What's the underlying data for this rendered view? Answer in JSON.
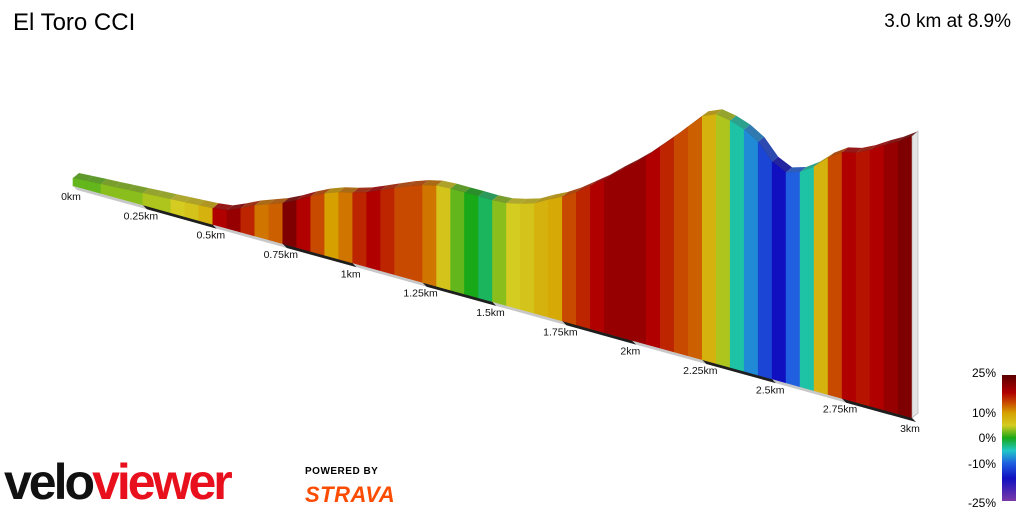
{
  "header": {
    "title": "El Toro CCI",
    "summary": "3.0 km at 8.9%"
  },
  "chart_data": {
    "type": "area",
    "title": "El Toro CCI",
    "xlabel": "",
    "ylabel": "",
    "x_unit": "km",
    "xlim": [
      0,
      3.0
    ],
    "tick_labels": [
      "0km",
      "0.25km",
      "0.5km",
      "0.75km",
      "1km",
      "1.25km",
      "1.5km",
      "1.75km",
      "2km",
      "2.25km",
      "2.5km",
      "2.75km",
      "3km"
    ],
    "tick_values": [
      0,
      0.25,
      0.5,
      0.75,
      1.0,
      1.25,
      1.5,
      1.75,
      2.0,
      2.25,
      2.5,
      2.75,
      3.0
    ],
    "elevation_m": {
      "x": [
        0,
        0.05,
        0.1,
        0.15,
        0.2,
        0.25,
        0.3,
        0.35,
        0.4,
        0.45,
        0.5,
        0.55,
        0.6,
        0.65,
        0.7,
        0.75,
        0.8,
        0.85,
        0.9,
        0.95,
        1.0,
        1.05,
        1.1,
        1.15,
        1.2,
        1.25,
        1.3,
        1.35,
        1.4,
        1.45,
        1.5,
        1.55,
        1.6,
        1.65,
        1.7,
        1.75,
        1.8,
        1.85,
        1.9,
        1.95,
        2.0,
        2.05,
        2.1,
        2.15,
        2.2,
        2.25,
        2.3,
        2.35,
        2.4,
        2.45,
        2.5,
        2.55,
        2.6,
        2.65,
        2.7,
        2.75,
        2.8,
        2.85,
        2.9,
        2.95,
        3.0
      ],
      "y": [
        0,
        1,
        2,
        3,
        4,
        5,
        6,
        7,
        8,
        9,
        10,
        12,
        19,
        27,
        33,
        39,
        47,
        56,
        64,
        70,
        74,
        79,
        86,
        93,
        100,
        106,
        110,
        111,
        111,
        111,
        111,
        112,
        116,
        121,
        130,
        138,
        148,
        160,
        172,
        186,
        199,
        213,
        229,
        245,
        262,
        279,
        286,
        283,
        277,
        267,
        248,
        240,
        245,
        256,
        271,
        282,
        286,
        294,
        304,
        313,
        324
      ]
    },
    "segment_grades_pct": [
      2,
      2,
      3,
      3,
      3,
      4,
      4,
      5,
      6,
      8,
      18,
      20,
      16,
      12,
      13,
      22,
      18,
      14,
      10,
      12,
      16,
      18,
      16,
      14,
      14,
      12,
      6,
      2,
      0,
      -2,
      3,
      5,
      6,
      8,
      9,
      14,
      16,
      18,
      20,
      20,
      20,
      18,
      16,
      14,
      13,
      8,
      4,
      -4,
      -8,
      -12,
      -16,
      -10,
      -4,
      8,
      14,
      18,
      17,
      18,
      20,
      22
    ],
    "color_scale": {
      "labels": [
        "25%",
        "10%",
        "0%",
        "-10%",
        "-25%"
      ],
      "stops": [
        {
          "pct": 25,
          "color": "#5a0000"
        },
        {
          "pct": 18,
          "color": "#b00000"
        },
        {
          "pct": 14,
          "color": "#c84a00"
        },
        {
          "pct": 10,
          "color": "#d6a000"
        },
        {
          "pct": 5,
          "color": "#d4cc20"
        },
        {
          "pct": 0,
          "color": "#18a818"
        },
        {
          "pct": -5,
          "color": "#20c8c8"
        },
        {
          "pct": -10,
          "color": "#2060e0"
        },
        {
          "pct": -16,
          "color": "#1010c0"
        },
        {
          "pct": -25,
          "color": "#7a3aa8"
        }
      ]
    }
  },
  "branding": {
    "logo_part1": "velo",
    "logo_part2": "viewer",
    "powered_by": "POWERED BY",
    "strava": "STRAVA",
    "logo_color_dark": "#111111",
    "logo_color_accent": "#e8101c",
    "strava_color": "#fc4c02"
  }
}
